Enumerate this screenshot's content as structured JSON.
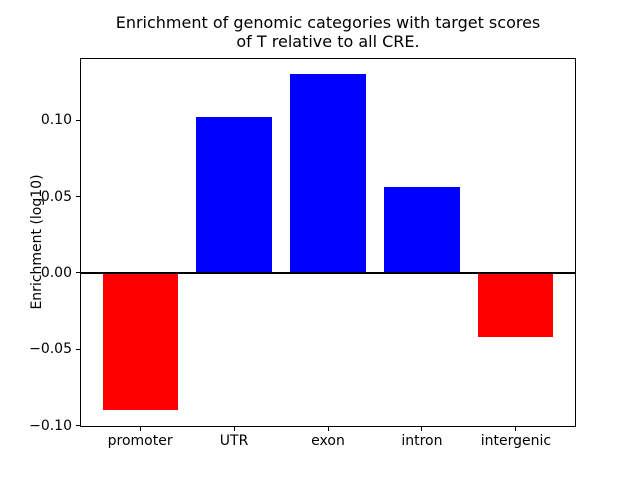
{
  "figure": {
    "title": "Enrichment of genomic categories with target scores\nof T relative to all CRE.",
    "ylabel": "Enrichment (log10)"
  },
  "chart_data": {
    "type": "bar",
    "title": "Enrichment of genomic categories with target scores\nof T relative to all CRE.",
    "xlabel": "",
    "ylabel": "Enrichment (log10)",
    "categories": [
      "promoter",
      "UTR",
      "exon",
      "intron",
      "intergenic"
    ],
    "values": [
      -0.09,
      0.102,
      0.13,
      0.056,
      -0.042
    ],
    "colors": [
      "#ff0000",
      "#0000ff",
      "#0000ff",
      "#0000ff",
      "#ff0000"
    ],
    "positive_color": "#0000ff",
    "negative_color": "#ff0000",
    "bar_width": 0.8,
    "ylim": [
      -0.101,
      0.141
    ],
    "xlim": [
      -0.64,
      4.64
    ],
    "yticks": [
      {
        "v": 0.1,
        "label": "0.10"
      },
      {
        "v": 0.05,
        "label": "0.05"
      },
      {
        "v": 0.0,
        "label": "0.00"
      },
      {
        "v": -0.05,
        "label": "−0.05"
      },
      {
        "v": -0.1,
        "label": "−0.10"
      }
    ],
    "zero_line": {
      "y": 0.0,
      "color": "#000000"
    },
    "grid": false,
    "legend_position": "none"
  }
}
